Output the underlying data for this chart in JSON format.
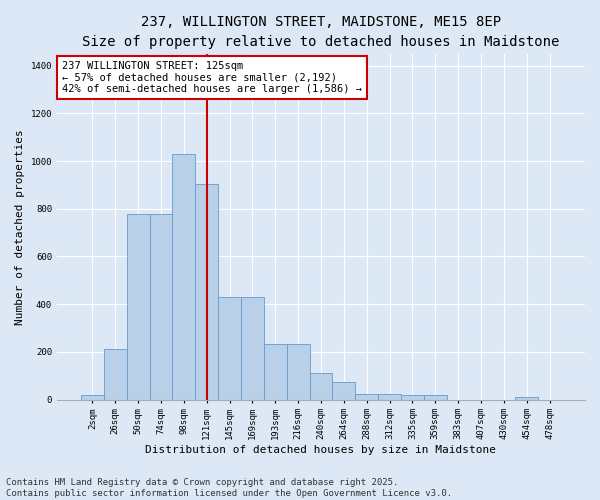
{
  "title": "237, WILLINGTON STREET, MAIDSTONE, ME15 8EP",
  "subtitle": "Size of property relative to detached houses in Maidstone",
  "xlabel": "Distribution of detached houses by size in Maidstone",
  "ylabel": "Number of detached properties",
  "bar_labels": [
    "2sqm",
    "26sqm",
    "50sqm",
    "74sqm",
    "98sqm",
    "121sqm",
    "145sqm",
    "169sqm",
    "193sqm",
    "216sqm",
    "240sqm",
    "264sqm",
    "288sqm",
    "312sqm",
    "335sqm",
    "359sqm",
    "383sqm",
    "407sqm",
    "430sqm",
    "454sqm",
    "478sqm"
  ],
  "bar_values": [
    20,
    210,
    780,
    780,
    1030,
    905,
    430,
    430,
    235,
    235,
    110,
    75,
    25,
    25,
    20,
    20,
    0,
    0,
    0,
    10,
    0
  ],
  "bar_color": "#b8d0e8",
  "bar_edge_color": "#6699cc",
  "vline_x_index": 5,
  "vline_color": "#cc0000",
  "annotation_text": "237 WILLINGTON STREET: 125sqm\n← 57% of detached houses are smaller (2,192)\n42% of semi-detached houses are larger (1,586) →",
  "annotation_box_facecolor": "#ffffff",
  "annotation_box_edgecolor": "#cc0000",
  "ylim": [
    0,
    1450
  ],
  "yticks": [
    0,
    200,
    400,
    600,
    800,
    1000,
    1200,
    1400
  ],
  "bg_color": "#dce8f5",
  "plot_bg_color": "#dce8f5",
  "footer_text": "Contains HM Land Registry data © Crown copyright and database right 2025.\nContains public sector information licensed under the Open Government Licence v3.0.",
  "title_fontsize": 10,
  "xlabel_fontsize": 8,
  "ylabel_fontsize": 8,
  "tick_fontsize": 6.5,
  "footer_fontsize": 6.5,
  "annotation_fontsize": 7.5
}
